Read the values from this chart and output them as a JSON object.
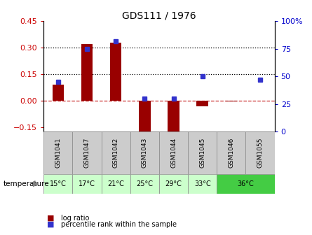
{
  "title": "GDS111 / 1976",
  "samples": [
    "GSM1041",
    "GSM1047",
    "GSM1042",
    "GSM1043",
    "GSM1044",
    "GSM1045",
    "GSM1046",
    "GSM1055"
  ],
  "log_ratio": [
    0.09,
    0.32,
    0.33,
    -0.175,
    -0.18,
    -0.03,
    -0.005,
    0.0
  ],
  "percentile_rank": [
    45,
    75,
    82,
    30,
    30,
    50,
    null,
    47
  ],
  "ylim_left": [
    -0.175,
    0.45
  ],
  "ylim_right": [
    0,
    100
  ],
  "yticks_left": [
    -0.15,
    0.0,
    0.15,
    0.3,
    0.45
  ],
  "yticks_right": [
    0,
    25,
    50,
    75,
    100
  ],
  "hlines": [
    0.15,
    0.3
  ],
  "bar_color": "#990000",
  "dot_color": "#3333cc",
  "zero_line_color": "#cc3333",
  "gsm_label_bg": "#cccccc",
  "temp_to_samples": {
    "15°C": [
      0
    ],
    "17°C": [
      1
    ],
    "21°C": [
      2
    ],
    "25°C": [
      3
    ],
    "29°C": [
      4
    ],
    "33°C": [
      5
    ],
    "36°C": [
      6,
      7
    ]
  },
  "temp_colors": {
    "15°C": "#ccffcc",
    "17°C": "#ccffcc",
    "21°C": "#ccffcc",
    "25°C": "#ccffcc",
    "29°C": "#ccffcc",
    "33°C": "#ccffcc",
    "36°C": "#44cc44"
  },
  "legend_red": "log ratio",
  "legend_blue": "percentile rank within the sample",
  "temp_label": "temperature",
  "bar_width": 0.4
}
